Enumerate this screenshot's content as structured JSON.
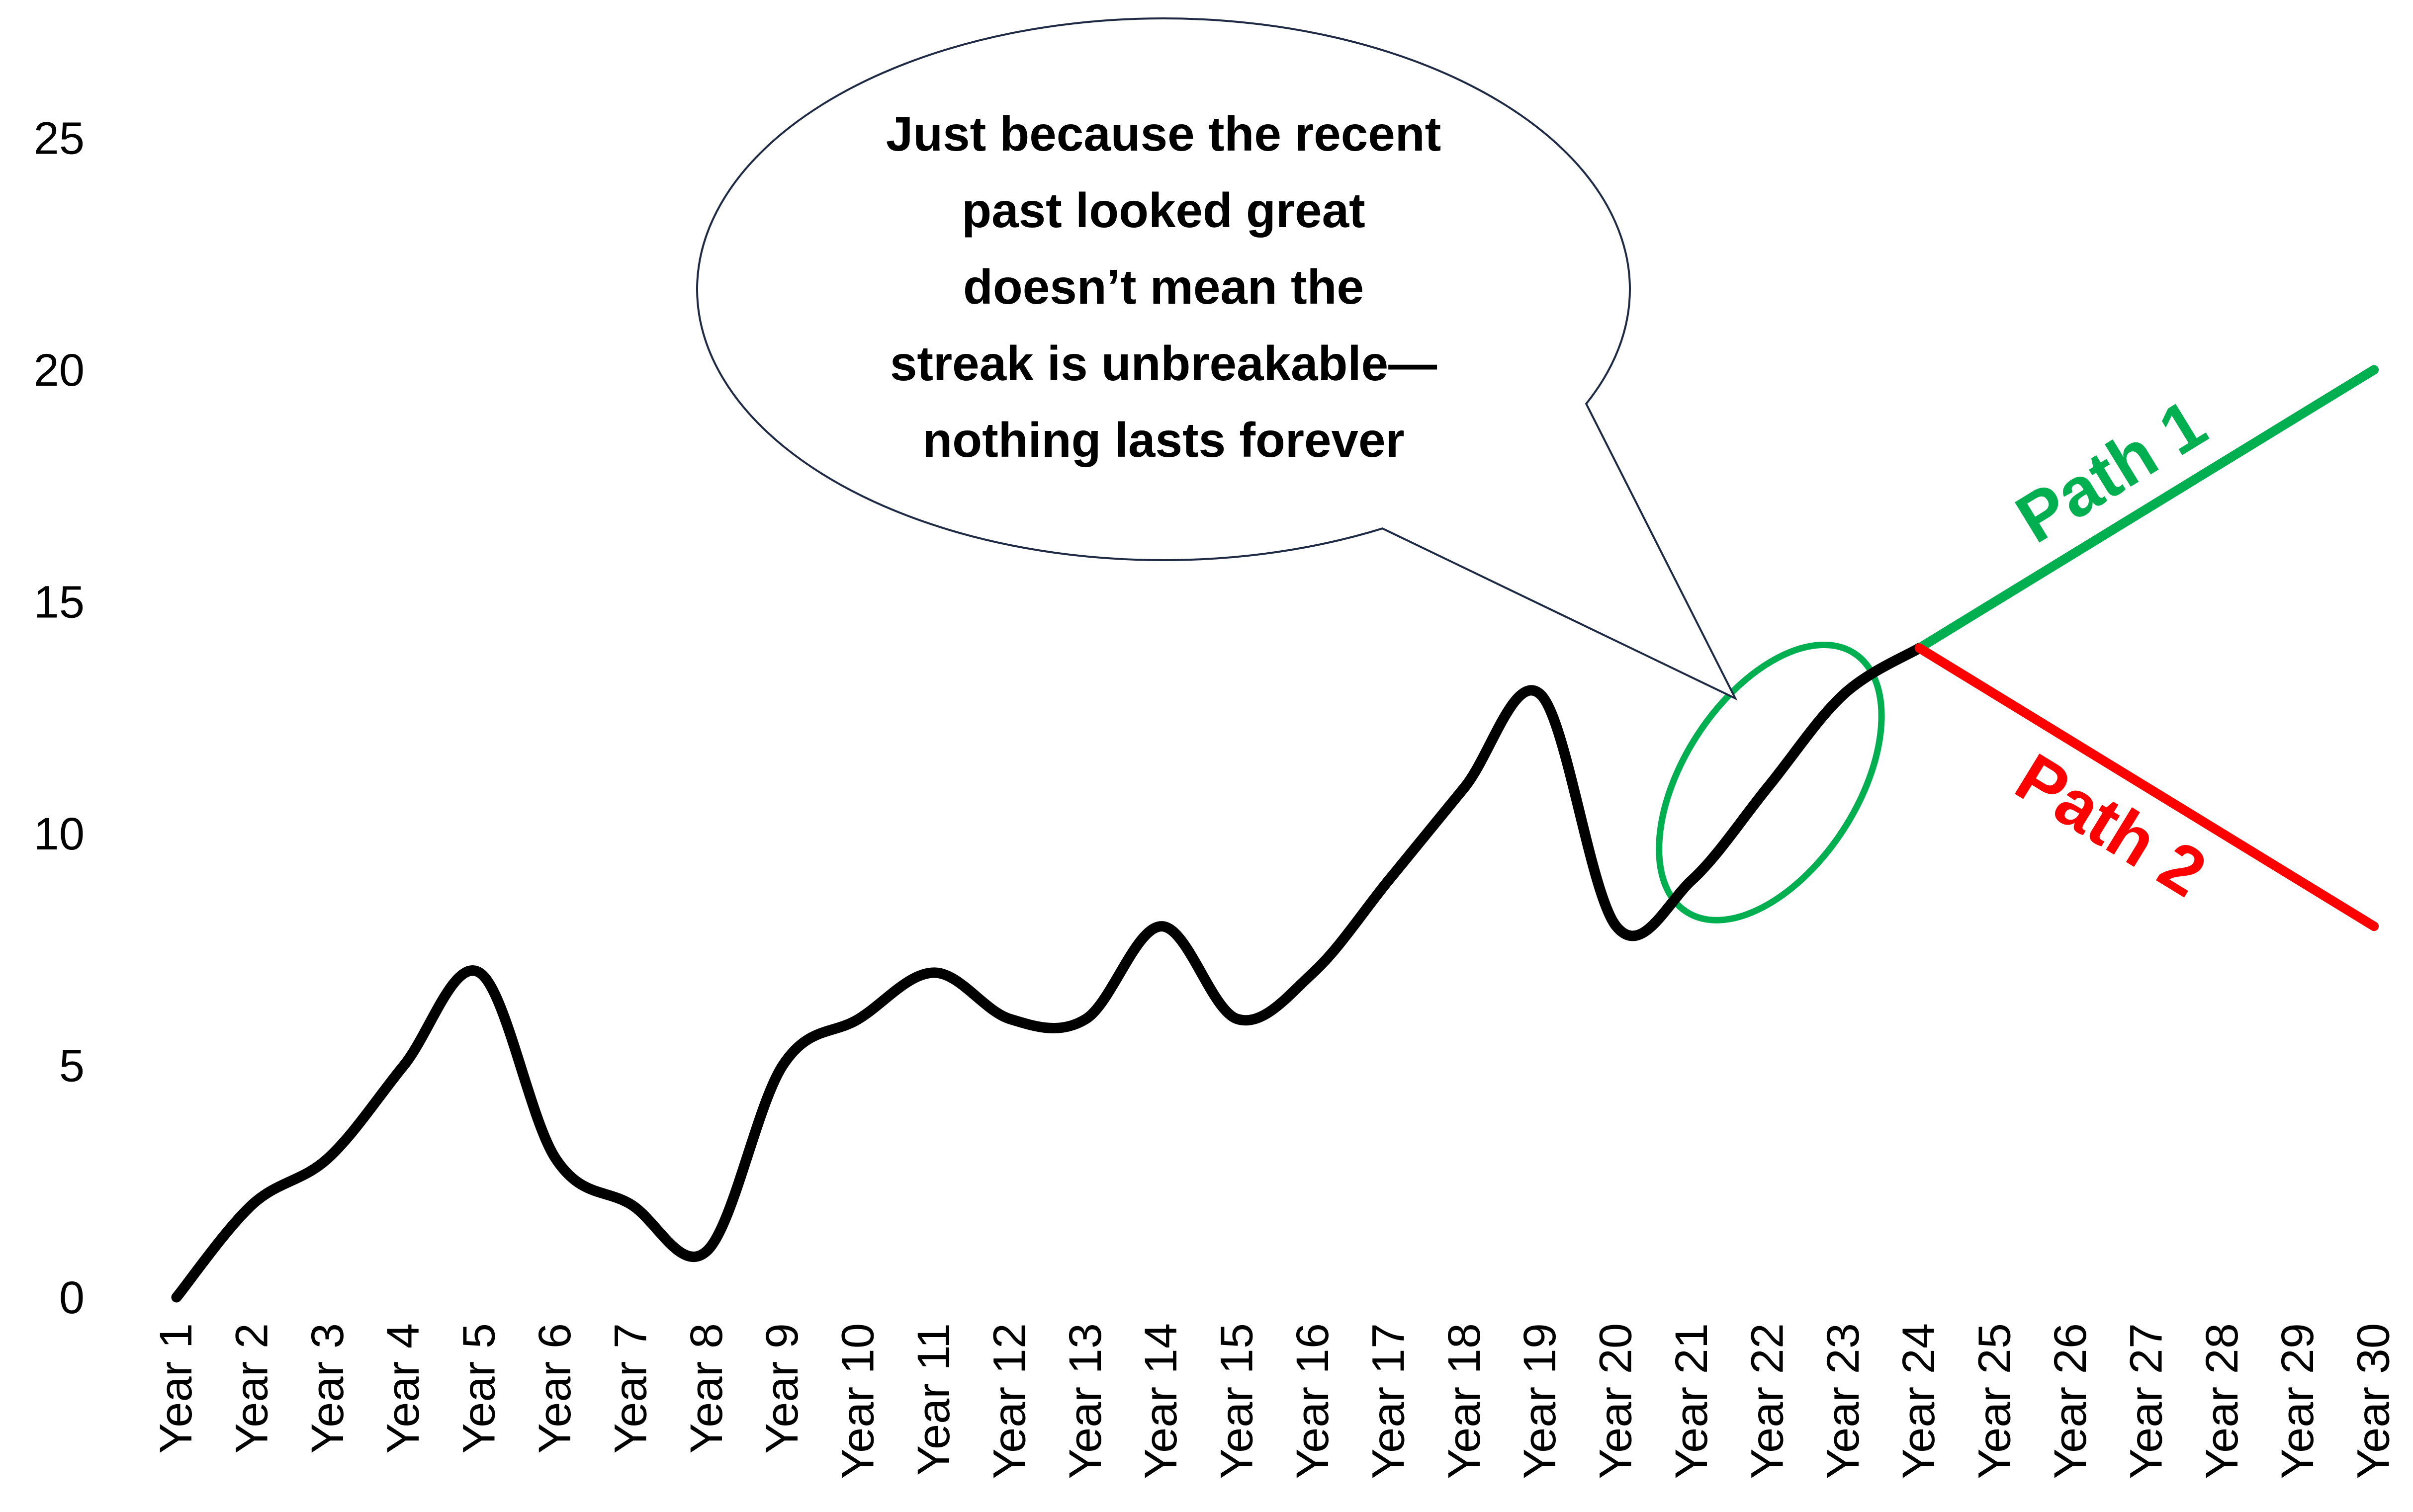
{
  "chart_data": {
    "type": "line",
    "title": "",
    "xlabel": "",
    "ylabel": "",
    "ylim": [
      0,
      25
    ],
    "y_ticks": [
      "0",
      "5",
      "10",
      "15",
      "20",
      "25"
    ],
    "grid": false,
    "legend": "none",
    "categories": [
      "Year 1",
      "Year 2",
      "Year 3",
      "Year 4",
      "Year 5",
      "Year 6",
      "Year 7",
      "Year 8",
      "Year 9",
      "Year 10",
      "Year 11",
      "Year 12",
      "Year 13",
      "Year 14",
      "Year 15",
      "Year 16",
      "Year 17",
      "Year 18",
      "Year 19",
      "Year 20",
      "Year 21",
      "Year 22",
      "Year 23",
      "Year 24",
      "Year 25",
      "Year 26",
      "Year 27",
      "Year 28",
      "Year 29",
      "Year 30"
    ],
    "series": [
      {
        "x": [
          "Year 1",
          "Year 2",
          "Year 3",
          "Year 4",
          "Year 5",
          "Year 6",
          "Year 7",
          "Year 8",
          "Year 9",
          "Year 10",
          "Year 11",
          "Year 12",
          "Year 13",
          "Year 14",
          "Year 15",
          "Year 16",
          "Year 17",
          "Year 18",
          "Year 19",
          "Year 20",
          "Year 21",
          "Year 22",
          "Year 23",
          "Year 24"
        ],
        "values": [
          0,
          2,
          3,
          5,
          7,
          3,
          2,
          1,
          5,
          6,
          7,
          6,
          6,
          8,
          6,
          7,
          9,
          11,
          13,
          8,
          9,
          11,
          13,
          14
        ],
        "color": "#000000",
        "smooth": true
      },
      {
        "name": "Path 1",
        "x": [
          "Year 24",
          "Year 30"
        ],
        "values": [
          14,
          20
        ],
        "color": "#00b050"
      },
      {
        "name": "Path 2",
        "x": [
          "Year 24",
          "Year 30"
        ],
        "values": [
          14,
          8
        ],
        "color": "#ff0000"
      }
    ],
    "annotations": {
      "callout_lines": [
        "Just because the recent",
        "past looked great",
        "doesn’t mean the",
        "streak is unbreakable—",
        "nothing lasts forever"
      ],
      "highlight": {
        "from": "Year 20",
        "to": "Year 24",
        "color": "#00b050"
      }
    }
  }
}
